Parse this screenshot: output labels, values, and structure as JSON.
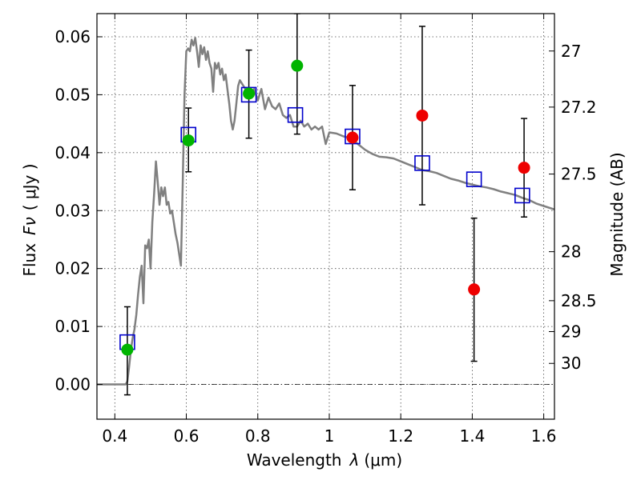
{
  "chart_data": {
    "type": "scatter",
    "xlabel": "Wavelength",
    "xlabel_symbol": "λ",
    "xlabel_unit": "(μm)",
    "ylabel": "Flux",
    "ylabel_symbol": "Fν",
    "ylabel_unit": "( μJy )",
    "y2label": "Magnitude (AB)",
    "xlim": [
      0.35,
      1.63
    ],
    "ylim": [
      -0.006,
      0.064
    ],
    "grid": true,
    "x_ticks": [
      {
        "value": 0.4,
        "label": "0.4"
      },
      {
        "value": 0.6,
        "label": "0.6"
      },
      {
        "value": 0.8,
        "label": "0.8"
      },
      {
        "value": 1.0,
        "label": "1"
      },
      {
        "value": 1.2,
        "label": "1.2"
      },
      {
        "value": 1.4,
        "label": "1.4"
      },
      {
        "value": 1.6,
        "label": "1.6"
      }
    ],
    "y_ticks": [
      {
        "value": 0.0,
        "label": "0.00"
      },
      {
        "value": 0.01,
        "label": "0.01"
      },
      {
        "value": 0.02,
        "label": "0.02"
      },
      {
        "value": 0.03,
        "label": "0.03"
      },
      {
        "value": 0.04,
        "label": "0.04"
      },
      {
        "value": 0.05,
        "label": "0.05"
      },
      {
        "value": 0.06,
        "label": "0.06"
      }
    ],
    "mag_ticks": [
      {
        "mag": 27,
        "label": "27"
      },
      {
        "mag": 27.2,
        "label": "27.2"
      },
      {
        "mag": 27.5,
        "label": "27.5"
      },
      {
        "mag": 28,
        "label": "28"
      },
      {
        "mag": 28.5,
        "label": "28.5"
      },
      {
        "mag": 29,
        "label": "29"
      },
      {
        "mag": 30,
        "label": "30"
      }
    ],
    "model_sed": {
      "color": "#808080",
      "points": [
        [
          0.35,
          0.0
        ],
        [
          0.43,
          0.0
        ],
        [
          0.435,
          0.0005
        ],
        [
          0.44,
          0.003
        ],
        [
          0.445,
          0.006
        ],
        [
          0.45,
          0.008
        ],
        [
          0.455,
          0.0095
        ],
        [
          0.46,
          0.012
        ],
        [
          0.465,
          0.0155
        ],
        [
          0.47,
          0.0185
        ],
        [
          0.475,
          0.0205
        ],
        [
          0.48,
          0.014
        ],
        [
          0.485,
          0.024
        ],
        [
          0.49,
          0.0235
        ],
        [
          0.495,
          0.025
        ],
        [
          0.5,
          0.02
        ],
        [
          0.505,
          0.028
        ],
        [
          0.51,
          0.033
        ],
        [
          0.515,
          0.0385
        ],
        [
          0.52,
          0.035
        ],
        [
          0.525,
          0.031
        ],
        [
          0.53,
          0.034
        ],
        [
          0.535,
          0.0325
        ],
        [
          0.54,
          0.034
        ],
        [
          0.545,
          0.031
        ],
        [
          0.55,
          0.0315
        ],
        [
          0.555,
          0.0295
        ],
        [
          0.56,
          0.03
        ],
        [
          0.565,
          0.028
        ],
        [
          0.57,
          0.026
        ],
        [
          0.575,
          0.0245
        ],
        [
          0.58,
          0.0225
        ],
        [
          0.585,
          0.0205
        ],
        [
          0.59,
          0.035
        ],
        [
          0.595,
          0.05
        ],
        [
          0.6,
          0.0575
        ],
        [
          0.605,
          0.058
        ],
        [
          0.61,
          0.0575
        ],
        [
          0.615,
          0.0595
        ],
        [
          0.62,
          0.0585
        ],
        [
          0.625,
          0.0598
        ],
        [
          0.63,
          0.0575
        ],
        [
          0.635,
          0.0548
        ],
        [
          0.64,
          0.0585
        ],
        [
          0.645,
          0.057
        ],
        [
          0.65,
          0.0582
        ],
        [
          0.655,
          0.056
        ],
        [
          0.66,
          0.0575
        ],
        [
          0.665,
          0.0555
        ],
        [
          0.67,
          0.0545
        ],
        [
          0.675,
          0.0505
        ],
        [
          0.68,
          0.0555
        ],
        [
          0.685,
          0.0545
        ],
        [
          0.69,
          0.0555
        ],
        [
          0.695,
          0.0535
        ],
        [
          0.7,
          0.0545
        ],
        [
          0.705,
          0.0525
        ],
        [
          0.71,
          0.0535
        ],
        [
          0.715,
          0.051
        ],
        [
          0.72,
          0.0485
        ],
        [
          0.725,
          0.0455
        ],
        [
          0.73,
          0.044
        ],
        [
          0.735,
          0.0455
        ],
        [
          0.74,
          0.0485
        ],
        [
          0.745,
          0.0515
        ],
        [
          0.75,
          0.0525
        ],
        [
          0.76,
          0.0515
        ],
        [
          0.77,
          0.0505
        ],
        [
          0.78,
          0.0495
        ],
        [
          0.79,
          0.051
        ],
        [
          0.8,
          0.049
        ],
        [
          0.81,
          0.051
        ],
        [
          0.82,
          0.0475
        ],
        [
          0.83,
          0.0495
        ],
        [
          0.84,
          0.048
        ],
        [
          0.85,
          0.0475
        ],
        [
          0.86,
          0.0485
        ],
        [
          0.87,
          0.0465
        ],
        [
          0.88,
          0.046
        ],
        [
          0.89,
          0.0465
        ],
        [
          0.9,
          0.0445
        ],
        [
          0.91,
          0.0445
        ],
        [
          0.92,
          0.0455
        ],
        [
          0.93,
          0.0445
        ],
        [
          0.94,
          0.045
        ],
        [
          0.95,
          0.044
        ],
        [
          0.96,
          0.0445
        ],
        [
          0.97,
          0.044
        ],
        [
          0.98,
          0.0445
        ],
        [
          0.99,
          0.0415
        ],
        [
          1.0,
          0.0435
        ],
        [
          1.02,
          0.0433
        ],
        [
          1.04,
          0.0428
        ],
        [
          1.06,
          0.0425
        ],
        [
          1.08,
          0.0415
        ],
        [
          1.1,
          0.0405
        ],
        [
          1.12,
          0.0398
        ],
        [
          1.14,
          0.0393
        ],
        [
          1.16,
          0.0392
        ],
        [
          1.18,
          0.039
        ],
        [
          1.2,
          0.0385
        ],
        [
          1.22,
          0.038
        ],
        [
          1.24,
          0.0375
        ],
        [
          1.26,
          0.037
        ],
        [
          1.28,
          0.0368
        ],
        [
          1.3,
          0.0365
        ],
        [
          1.32,
          0.036
        ],
        [
          1.34,
          0.0355
        ],
        [
          1.36,
          0.0352
        ],
        [
          1.38,
          0.0348
        ],
        [
          1.4,
          0.0345
        ],
        [
          1.42,
          0.0342
        ],
        [
          1.44,
          0.034
        ],
        [
          1.46,
          0.0337
        ],
        [
          1.48,
          0.0333
        ],
        [
          1.5,
          0.033
        ],
        [
          1.52,
          0.0327
        ],
        [
          1.54,
          0.0322
        ],
        [
          1.56,
          0.0318
        ],
        [
          1.58,
          0.0312
        ],
        [
          1.6,
          0.0308
        ],
        [
          1.63,
          0.0302
        ]
      ]
    },
    "model_photometry": {
      "marker": "open-square",
      "color": "#0000cc",
      "points": [
        {
          "x": 0.435,
          "y": 0.0073
        },
        {
          "x": 0.606,
          "y": 0.0431
        },
        {
          "x": 0.775,
          "y": 0.05
        },
        {
          "x": 0.905,
          "y": 0.0465
        },
        {
          "x": 1.065,
          "y": 0.0428
        },
        {
          "x": 1.26,
          "y": 0.0382
        },
        {
          "x": 1.405,
          "y": 0.0354
        },
        {
          "x": 1.54,
          "y": 0.0326
        }
      ]
    },
    "observed_optical": {
      "marker": "filled-circle",
      "color": "#00b400",
      "points": [
        {
          "x": 0.435,
          "y": 0.006,
          "err_low": -0.0018,
          "err_high": 0.0134
        },
        {
          "x": 0.606,
          "y": 0.0421,
          "err_low": 0.0367,
          "err_high": 0.0477
        },
        {
          "x": 0.775,
          "y": 0.0502,
          "err_low": 0.0425,
          "err_high": 0.0577
        },
        {
          "x": 0.91,
          "y": 0.055,
          "err_low": 0.0432,
          "err_high": 0.064
        }
      ]
    },
    "observed_nir": {
      "marker": "filled-circle",
      "color": "#ee0000",
      "points": [
        {
          "x": 1.065,
          "y": 0.0426,
          "err_low": 0.0336,
          "err_high": 0.0516
        },
        {
          "x": 1.26,
          "y": 0.0464,
          "err_low": 0.031,
          "err_high": 0.0618
        },
        {
          "x": 1.405,
          "y": 0.0164,
          "err_low": 0.004,
          "err_high": 0.0287
        },
        {
          "x": 1.545,
          "y": 0.0374,
          "err_low": 0.0289,
          "err_high": 0.0459
        }
      ]
    }
  }
}
